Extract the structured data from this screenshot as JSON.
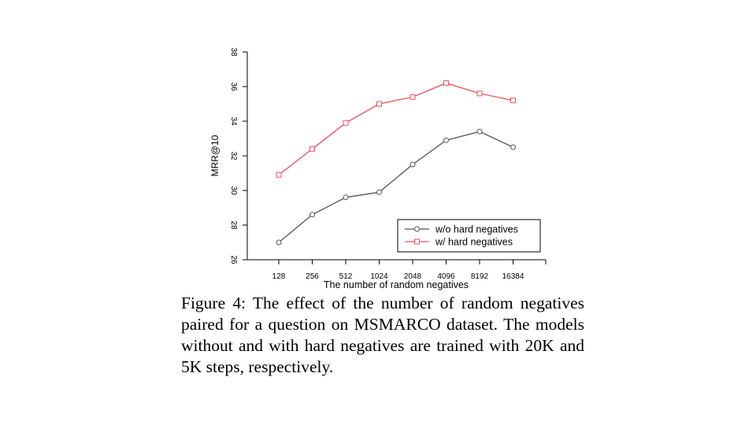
{
  "chart_data": {
    "type": "line",
    "title": "",
    "xlabel": "The number of random negatives",
    "ylabel": "MRR@10",
    "categories": [
      "128",
      "256",
      "512",
      "1024",
      "2048",
      "4096",
      "8192",
      "16384"
    ],
    "ylim": [
      26,
      38
    ],
    "yticks": [
      "26",
      "28",
      "30",
      "32",
      "34",
      "36",
      "38"
    ],
    "grid": false,
    "legend_position": "bottom-right",
    "series": [
      {
        "name": "w/o hard negatives",
        "color": "#555555",
        "marker": "circle",
        "values": [
          27.0,
          28.6,
          29.6,
          29.9,
          31.5,
          32.9,
          33.4,
          32.5
        ]
      },
      {
        "name": "w/ hard negatives",
        "color": "#f0505a",
        "marker": "square",
        "values": [
          30.9,
          32.4,
          33.9,
          35.0,
          35.4,
          36.2,
          35.6,
          35.2
        ]
      }
    ]
  },
  "caption": "Figure 4: The effect of the number of random negatives paired for a question on MSMARCO dataset. The models without and with hard negatives are trained with 20K and 5K steps, respectively."
}
